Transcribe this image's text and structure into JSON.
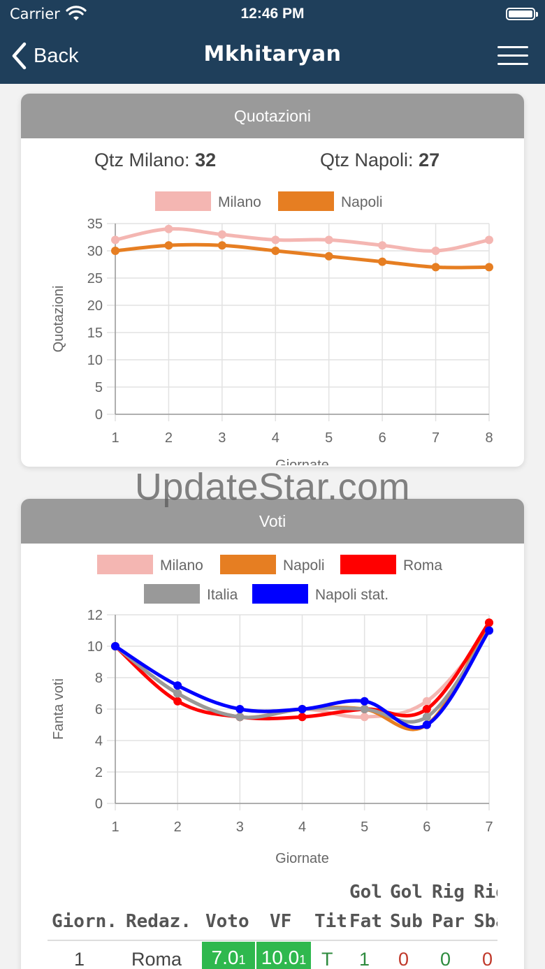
{
  "status_bar": {
    "carrier": "Carrier",
    "time": "12:46 PM"
  },
  "nav": {
    "back_label": "Back",
    "title": "Mkhitaryan"
  },
  "quotazioni": {
    "header": "Quotazioni",
    "milano_label": "Qtz Milano:",
    "milano_value": "32",
    "napoli_label": "Qtz Napoli:",
    "napoli_value": "27"
  },
  "voti": {
    "header": "Voti"
  },
  "watermark": "UpdateStar.com",
  "chart_data": [
    {
      "type": "line",
      "x": [
        1,
        2,
        3,
        4,
        5,
        6,
        7,
        8
      ],
      "series": [
        {
          "name": "Milano",
          "color": "#f4b6b2",
          "values": [
            32,
            34,
            33,
            32,
            32,
            31,
            30,
            32
          ]
        },
        {
          "name": "Napoli",
          "color": "#e67e22",
          "values": [
            30,
            31,
            31,
            30,
            29,
            28,
            27,
            27
          ]
        }
      ],
      "xlabel": "Giornate",
      "ylabel": "Quotazioni",
      "ylim": [
        0,
        35
      ],
      "yticks": [
        0,
        5,
        10,
        15,
        20,
        25,
        30,
        35
      ],
      "grid": true,
      "legend": "top"
    },
    {
      "type": "line",
      "x": [
        1,
        2,
        3,
        4,
        5,
        6,
        7
      ],
      "series": [
        {
          "name": "Milano",
          "color": "#f4b6b2",
          "values": [
            10,
            7,
            5.5,
            6,
            5.5,
            6.5,
            11
          ]
        },
        {
          "name": "Napoli",
          "color": "#e67e22",
          "values": [
            10,
            7,
            5.5,
            6,
            6,
            5,
            11.5
          ]
        },
        {
          "name": "Roma",
          "color": "#ff0000",
          "values": [
            10,
            6.5,
            5.5,
            5.5,
            6,
            6,
            11.5
          ]
        },
        {
          "name": "Italia",
          "color": "#999999",
          "values": [
            10,
            7,
            5.5,
            6,
            6,
            5.5,
            11
          ]
        },
        {
          "name": "Napoli stat.",
          "color": "#0000ff",
          "values": [
            10,
            7.5,
            6,
            6,
            6.5,
            5,
            11
          ]
        }
      ],
      "xlabel": "Giornate",
      "ylabel": "Fanta voti",
      "ylim": [
        0,
        12
      ],
      "yticks": [
        0,
        2,
        4,
        6,
        8,
        10,
        12
      ],
      "grid": true,
      "legend": "top"
    }
  ],
  "table": {
    "headers_top": [
      "Gol",
      "Gol",
      "Rig",
      "Rig"
    ],
    "headers": [
      "Giorn.",
      "Redaz.",
      "Voto",
      "VF",
      "Tit",
      "Fat",
      "Sub",
      "Par",
      "Sba"
    ],
    "rows": [
      {
        "giorn": "1",
        "redaz": "Roma",
        "voto": "7.0",
        "voto_sub": "1",
        "vf": "10.0",
        "vf_sub": "1",
        "tit": "T",
        "gol_fat": "1",
        "gol_sub": "0",
        "rig_par": "0",
        "rig_sba": "0"
      }
    ],
    "colors": {
      "green": "#2fb84e",
      "dark_green": "#2e8b3e",
      "red": "#c0392b"
    }
  }
}
